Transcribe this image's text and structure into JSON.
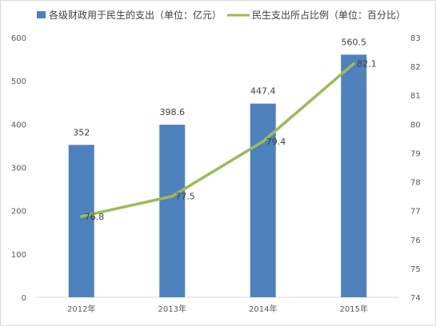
{
  "chart_data": {
    "type": "bar",
    "categories": [
      "2012年",
      "2013年",
      "2014年",
      "2015年"
    ],
    "series": [
      {
        "name": "各级财政用于民生的支出（单位：亿元）",
        "type": "bar",
        "axis": "left",
        "color": "#4f81bd",
        "values": [
          352,
          398.6,
          447.4,
          560.5
        ],
        "labels": [
          "352",
          "398.6",
          "447.4",
          "560.5"
        ]
      },
      {
        "name": "民生支出所占比例（单位：百分比）",
        "type": "line",
        "axis": "right",
        "color": "#9bbb59",
        "values": [
          76.8,
          77.5,
          79.4,
          82.1
        ],
        "labels": [
          "76.8",
          "77.5",
          "79.4",
          "82.1"
        ]
      }
    ],
    "y_left": {
      "range": [
        0,
        600
      ],
      "ticks": [
        "0",
        "100",
        "200",
        "300",
        "400",
        "500",
        "600"
      ]
    },
    "y_right": {
      "range": [
        74,
        83
      ],
      "ticks": [
        "74",
        "75",
        "76",
        "77",
        "78",
        "79",
        "80",
        "81",
        "82",
        "83"
      ]
    },
    "grid": false,
    "legend": "top"
  }
}
